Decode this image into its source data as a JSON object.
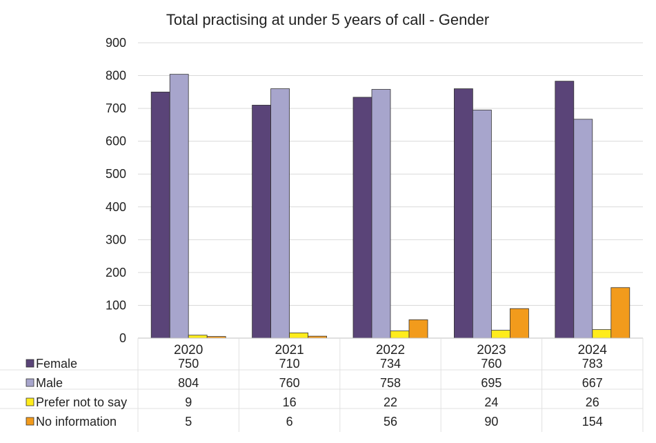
{
  "chart_data": {
    "type": "bar",
    "title": "Total practising at under 5 years of call - Gender",
    "xlabel": "",
    "ylabel": "",
    "ylim": [
      0,
      900
    ],
    "yticks": [
      0,
      100,
      200,
      300,
      400,
      500,
      600,
      700,
      800,
      900
    ],
    "ytick_labels": [
      "0",
      "100",
      "200",
      "300",
      "400",
      "500",
      "600",
      "700",
      "800",
      "900"
    ],
    "grid": true,
    "legend": "data-table",
    "categories": [
      "2020",
      "2021",
      "2022",
      "2023",
      "2024"
    ],
    "series": [
      {
        "name": "Female",
        "color": "#5a4478",
        "values": [
          750,
          710,
          734,
          760,
          783
        ],
        "labels": [
          "750",
          "710",
          "734",
          "760",
          "783"
        ]
      },
      {
        "name": "Male",
        "color": "#a7a5cc",
        "values": [
          804,
          760,
          758,
          695,
          667
        ],
        "labels": [
          "804",
          "760",
          "758",
          "695",
          "667"
        ]
      },
      {
        "name": "Prefer not to say",
        "color": "#ffec1c",
        "values": [
          9,
          16,
          22,
          24,
          26
        ],
        "labels": [
          "9",
          "16",
          "22",
          "24",
          "26"
        ]
      },
      {
        "name": "No information",
        "color": "#f29b1c",
        "values": [
          5,
          6,
          56,
          90,
          154
        ],
        "labels": [
          "5",
          "6",
          "56",
          "90",
          "154"
        ]
      }
    ]
  }
}
